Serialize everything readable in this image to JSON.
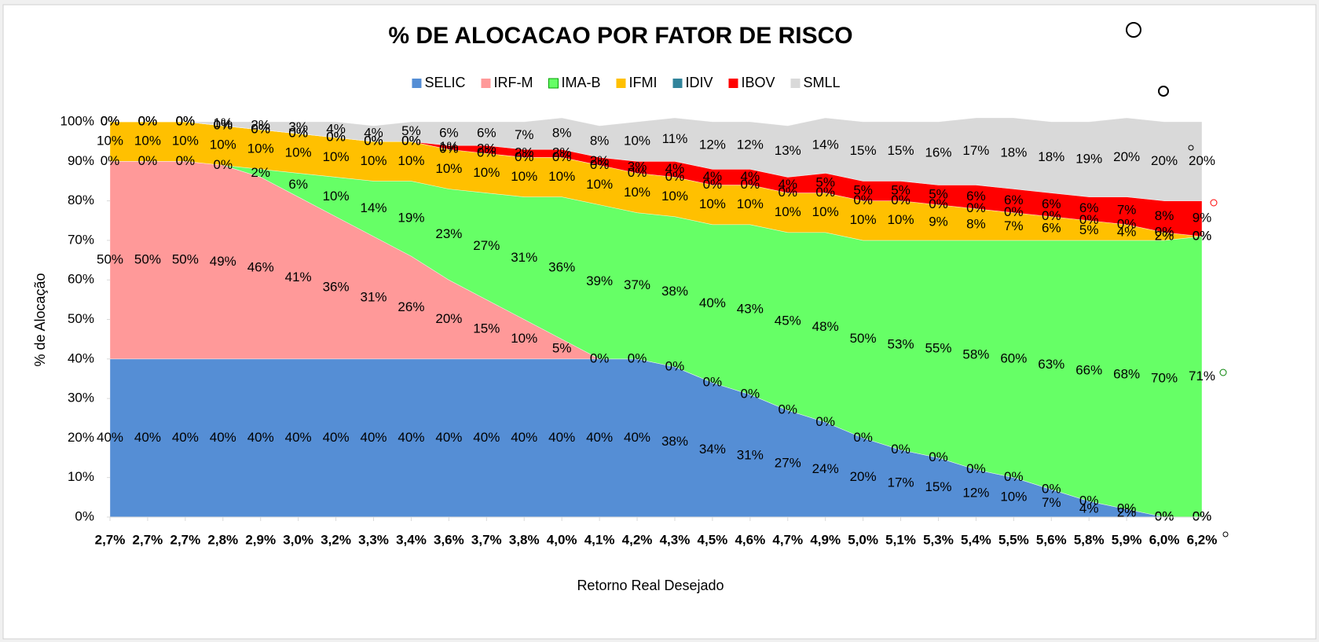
{
  "chart_data": {
    "type": "stacked_area",
    "title": "% DE ALOCACAO POR FATOR DE RISCO",
    "x_label": "Retorno Real Desejado",
    "y_label": "% de Alocação",
    "categories": [
      "2,7%",
      "2,7%",
      "2,7%",
      "2,8%",
      "2,9%",
      "3,0%",
      "3,2%",
      "3,3%",
      "3,4%",
      "3,6%",
      "3,7%",
      "3,8%",
      "4,0%",
      "4,1%",
      "4,2%",
      "4,3%",
      "4,5%",
      "4,6%",
      "4,7%",
      "4,9%",
      "5,0%",
      "5,1%",
      "5,3%",
      "5,4%",
      "5,5%",
      "5,6%",
      "5,8%",
      "5,9%",
      "6,0%",
      "6,2%"
    ],
    "ylim": [
      0,
      100
    ],
    "yticks": [
      {
        "value": 0,
        "label": "0%"
      },
      {
        "value": 10,
        "label": "10%"
      },
      {
        "value": 20,
        "label": "20%"
      },
      {
        "value": 30,
        "label": "30%"
      },
      {
        "value": 40,
        "label": "40%"
      },
      {
        "value": 50,
        "label": "50%"
      },
      {
        "value": 60,
        "label": "60%"
      },
      {
        "value": 70,
        "label": "70%"
      },
      {
        "value": 80,
        "label": "80%"
      },
      {
        "value": 90,
        "label": "90%"
      },
      {
        "value": 100,
        "label": "100%"
      }
    ],
    "legend": "top",
    "series": [
      {
        "name": "SELIC",
        "color": "#558ed5",
        "values": [
          40,
          40,
          40,
          40,
          40,
          40,
          40,
          40,
          40,
          40,
          40,
          40,
          40,
          40,
          40,
          38,
          34,
          31,
          27,
          24,
          20,
          17,
          15,
          12,
          10,
          7,
          4,
          2,
          0,
          0
        ],
        "value_labels": [
          "40%",
          "40%",
          "40%",
          "40%",
          "40%",
          "40%",
          "40%",
          "40%",
          "40%",
          "40%",
          "40%",
          "40%",
          "40%",
          "40%",
          "40%",
          "38%",
          "34%",
          "31%",
          "27%",
          "24%",
          "20%",
          "17%",
          "15%",
          "12%",
          "10%",
          "7%",
          "4%",
          "2%",
          "0%",
          "0%"
        ]
      },
      {
        "name": "IRF-M",
        "color": "#ff9999",
        "values": [
          50,
          50,
          50,
          49,
          46,
          41,
          36,
          31,
          26,
          20,
          15,
          10,
          5,
          0,
          0,
          0,
          0,
          0,
          0,
          0,
          0,
          0,
          0,
          0,
          0,
          0,
          0,
          0,
          0,
          0
        ],
        "value_labels": [
          "50%",
          "50%",
          "50%",
          "49%",
          "46%",
          "41%",
          "36%",
          "31%",
          "26%",
          "20%",
          "15%",
          "10%",
          "5%",
          "0%",
          "0%",
          "0%",
          "0%",
          "0%",
          "0%",
          "0%",
          "0%",
          "0%",
          "0%",
          "0%",
          "0%",
          "0%",
          "0%",
          "0%",
          "0%",
          "0%"
        ]
      },
      {
        "name": "IMA-B",
        "color": "#66ff66",
        "values": [
          0,
          0,
          0,
          0,
          2,
          6,
          10,
          14,
          19,
          23,
          27,
          31,
          36,
          39,
          37,
          38,
          40,
          43,
          45,
          48,
          50,
          53,
          55,
          58,
          60,
          63,
          66,
          68,
          70,
          71
        ],
        "value_labels": [
          "0%",
          "0%",
          "0%",
          "0%",
          "2%",
          "6%",
          "10%",
          "14%",
          "19%",
          "23%",
          "27%",
          "31%",
          "36%",
          "39%",
          "37%",
          "38%",
          "40%",
          "43%",
          "45%",
          "48%",
          "50%",
          "53%",
          "55%",
          "58%",
          "60%",
          "63%",
          "66%",
          "68%",
          "70%",
          "71%"
        ]
      },
      {
        "name": "IFMI",
        "color": "#ffc000",
        "values": [
          10,
          10,
          10,
          10,
          10,
          10,
          10,
          10,
          10,
          10,
          10,
          10,
          10,
          10,
          10,
          10,
          10,
          10,
          10,
          10,
          10,
          10,
          9,
          8,
          7,
          6,
          5,
          4,
          2,
          0
        ],
        "value_labels": [
          "10%",
          "10%",
          "10%",
          "10%",
          "10%",
          "10%",
          "10%",
          "10%",
          "10%",
          "10%",
          "10%",
          "10%",
          "10%",
          "10%",
          "10%",
          "10%",
          "10%",
          "10%",
          "10%",
          "10%",
          "10%",
          "10%",
          "9%",
          "8%",
          "7%",
          "6%",
          "5%",
          "4%",
          "2%",
          "0%"
        ]
      },
      {
        "name": "IDIV",
        "color": "#31849b",
        "values": [
          0,
          0,
          0,
          0,
          0,
          0,
          0,
          0,
          0,
          0,
          0,
          0,
          0,
          0,
          0,
          0,
          0,
          0,
          0,
          0,
          0,
          0,
          0,
          0,
          0,
          0,
          0,
          0,
          0,
          0
        ],
        "value_labels": [
          "0%",
          "0%",
          "0%",
          "0%",
          "0%",
          "0%",
          "0%",
          "0%",
          "0%",
          "0%",
          "0%",
          "0%",
          "0%",
          "0%",
          "0%",
          "0%",
          "0%",
          "0%",
          "0%",
          "0%",
          "0%",
          "0%",
          "0%",
          "0%",
          "0%",
          "0%",
          "0%",
          "0%",
          "0%",
          "0%"
        ]
      },
      {
        "name": "IBOV",
        "color": "#ff0000",
        "values": [
          0,
          0,
          0,
          0,
          0,
          0,
          0,
          0,
          0,
          1,
          2,
          2,
          2,
          2,
          3,
          4,
          4,
          4,
          4,
          5,
          5,
          5,
          5,
          6,
          6,
          6,
          6,
          7,
          8,
          9
        ],
        "value_labels": [
          "0%",
          "0%",
          "0%",
          "0%",
          "0%",
          "0%",
          "0%",
          "0%",
          "0%",
          "1%",
          "2%",
          "2%",
          "2%",
          "2%",
          "3%",
          "4%",
          "4%",
          "4%",
          "4%",
          "5%",
          "5%",
          "5%",
          "5%",
          "6%",
          "6%",
          "6%",
          "6%",
          "7%",
          "8%",
          "9%"
        ]
      },
      {
        "name": "SMLL",
        "color": "#d9d9d9",
        "values": [
          0,
          0,
          0,
          1,
          2,
          3,
          4,
          4,
          5,
          6,
          6,
          7,
          8,
          8,
          10,
          11,
          12,
          12,
          13,
          14,
          15,
          15,
          16,
          17,
          18,
          18,
          19,
          20,
          20,
          20
        ],
        "value_labels": [
          "0%",
          "0%",
          "0%",
          "1%",
          "2%",
          "3%",
          "4%",
          "4%",
          "5%",
          "6%",
          "6%",
          "7%",
          "8%",
          "8%",
          "10%",
          "11%",
          "12%",
          "12%",
          "13%",
          "14%",
          "15%",
          "15%",
          "16%",
          "17%",
          "18%",
          "18%",
          "19%",
          "20%",
          "20%",
          "20%"
        ]
      }
    ]
  }
}
